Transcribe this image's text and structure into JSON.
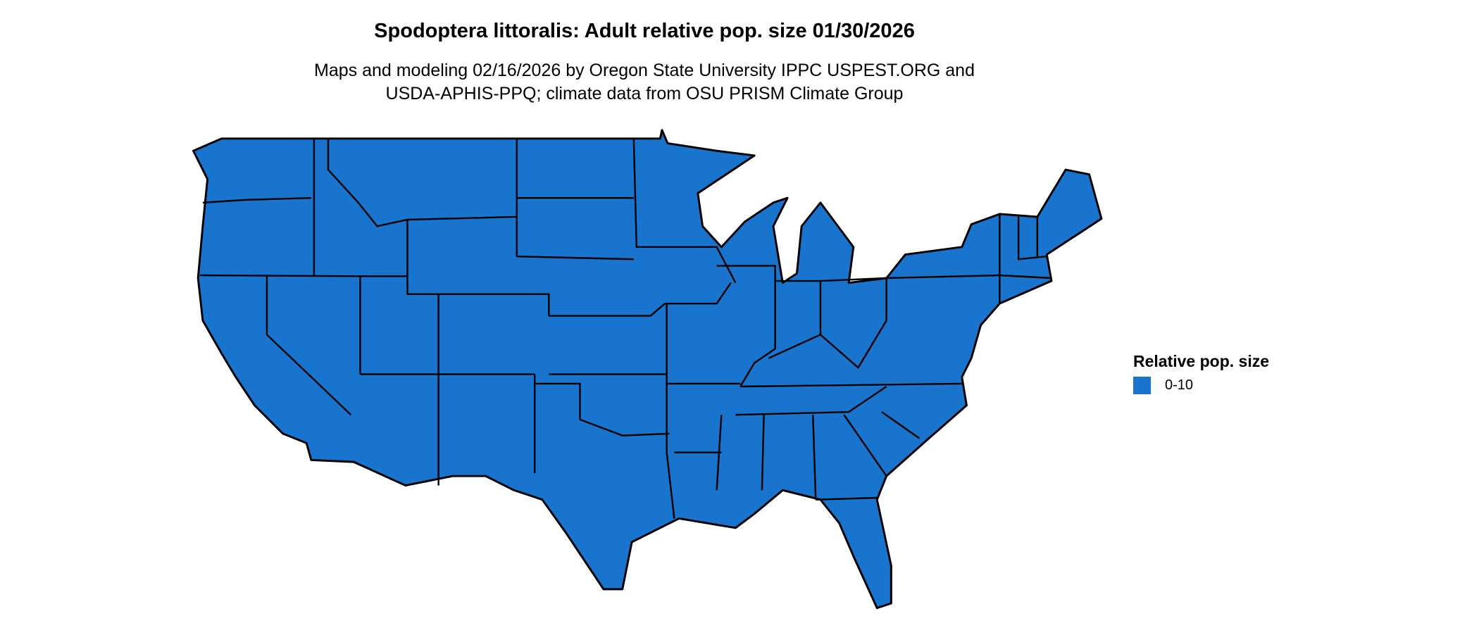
{
  "title": "Spodoptera littoralis: Adult relative pop. size 01/30/2026",
  "subtitle_line1": "Maps and modeling 02/16/2026 by Oregon State University IPPC USPEST.ORG and",
  "subtitle_line2": "USDA-APHIS-PPQ; climate data from OSU PRISM Climate Group",
  "legend": {
    "title": "Relative pop. size",
    "items": [
      {
        "label": "0-10",
        "color": "#1874CD"
      }
    ]
  },
  "map": {
    "region": "Contiguous United States",
    "fill_color": "#1874CD",
    "border_color": "#000000",
    "category": "0-10"
  }
}
